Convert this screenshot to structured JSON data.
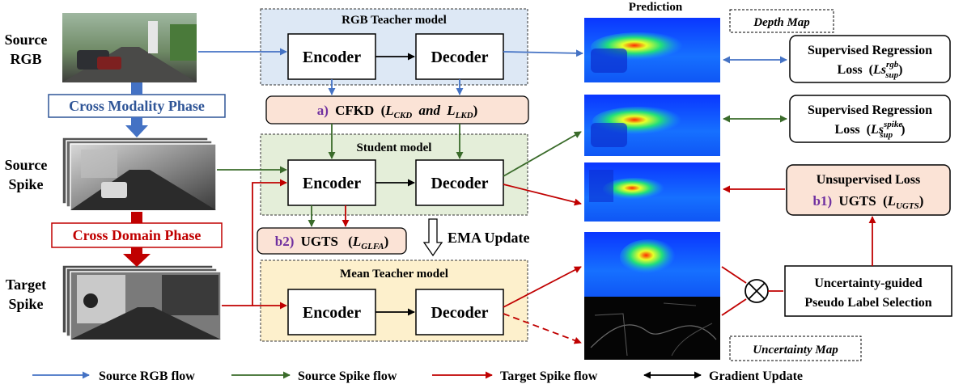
{
  "inputs": {
    "source_rgb": [
      "Source",
      "RGB"
    ],
    "source_spike": [
      "Source",
      "Spike"
    ],
    "target_spike": [
      "Target",
      "Spike"
    ]
  },
  "phases": {
    "cross_modality": "Cross Modality Phase",
    "cross_domain": "Cross Domain Phase"
  },
  "models": {
    "rgb_teacher": {
      "title": "RGB Teacher model",
      "encoder": "Encoder",
      "decoder": "Decoder"
    },
    "student": {
      "title": "Student model",
      "encoder": "Encoder",
      "decoder": "Decoder"
    },
    "mean_teacher": {
      "title": "Mean Teacher model",
      "encoder": "Encoder",
      "decoder": "Decoder"
    }
  },
  "losses": {
    "cfkd": {
      "prefix": "a)",
      "name": "CFKD",
      "open": "(",
      "l1": "L",
      "l1_sub": "CKD",
      "and": "and",
      "l2": "L",
      "l2_sub": "LKD",
      "close": ")"
    },
    "ugts_b2": {
      "prefix": "b2)",
      "name": "UGTS",
      "open": "(",
      "l": "L",
      "sub": "GLFA",
      "close": ")"
    },
    "ugts_b1": {
      "heading": "Unsupervised Loss",
      "prefix": "b1)",
      "name": "UGTS",
      "open": "(",
      "l": "L",
      "sub": "UGTS",
      "close": ")"
    },
    "sup_rgb": {
      "line1": "Supervised Regression",
      "line2": "Loss",
      "sym": "Ls",
      "sup": "rgb",
      "sub": "sup"
    },
    "sup_spike": {
      "line1": "Supervised Regression",
      "line2": "Loss",
      "sym": "Ls",
      "sup": "spike",
      "sub": "sup"
    }
  },
  "ema_update": "EMA Update",
  "prediction_label": "Prediction",
  "depth_map_label": "Depth Map",
  "uncertainty_map_label": "Uncertainty Map",
  "selection": {
    "line1": "Uncertainty-guided",
    "line2": "Pseudo Label Selection"
  },
  "legend": [
    {
      "label": "Source RGB flow",
      "color": "#4472c4",
      "double": false
    },
    {
      "label": "Source Spike flow",
      "color": "#3a6b2a",
      "double": false
    },
    {
      "label": "Target Spike flow",
      "color": "#c00000",
      "double": false
    },
    {
      "label": "Gradient Update",
      "color": "#000000",
      "double": true
    }
  ],
  "colors": {
    "rgb_flow": "#4472c4",
    "spike_flow": "#3a6b2a",
    "target_flow": "#c00000",
    "teacher_bg": "#dde8f5",
    "student_bg": "#e4eed9",
    "mean_teacher_bg": "#fdf0cc",
    "loss_bg": "#fbe3d6",
    "phase_blue": "#2f5597",
    "phase_red": "#c00000",
    "label_purple": "#7030a0"
  },
  "icons": {
    "depth_map": "depth-heatmap-image",
    "uncertainty_map": "uncertainty-image",
    "source_rgb": "street-rgb-photo",
    "spike_frames": "spike-frame-stack",
    "multiply": "circle-times-icon"
  }
}
